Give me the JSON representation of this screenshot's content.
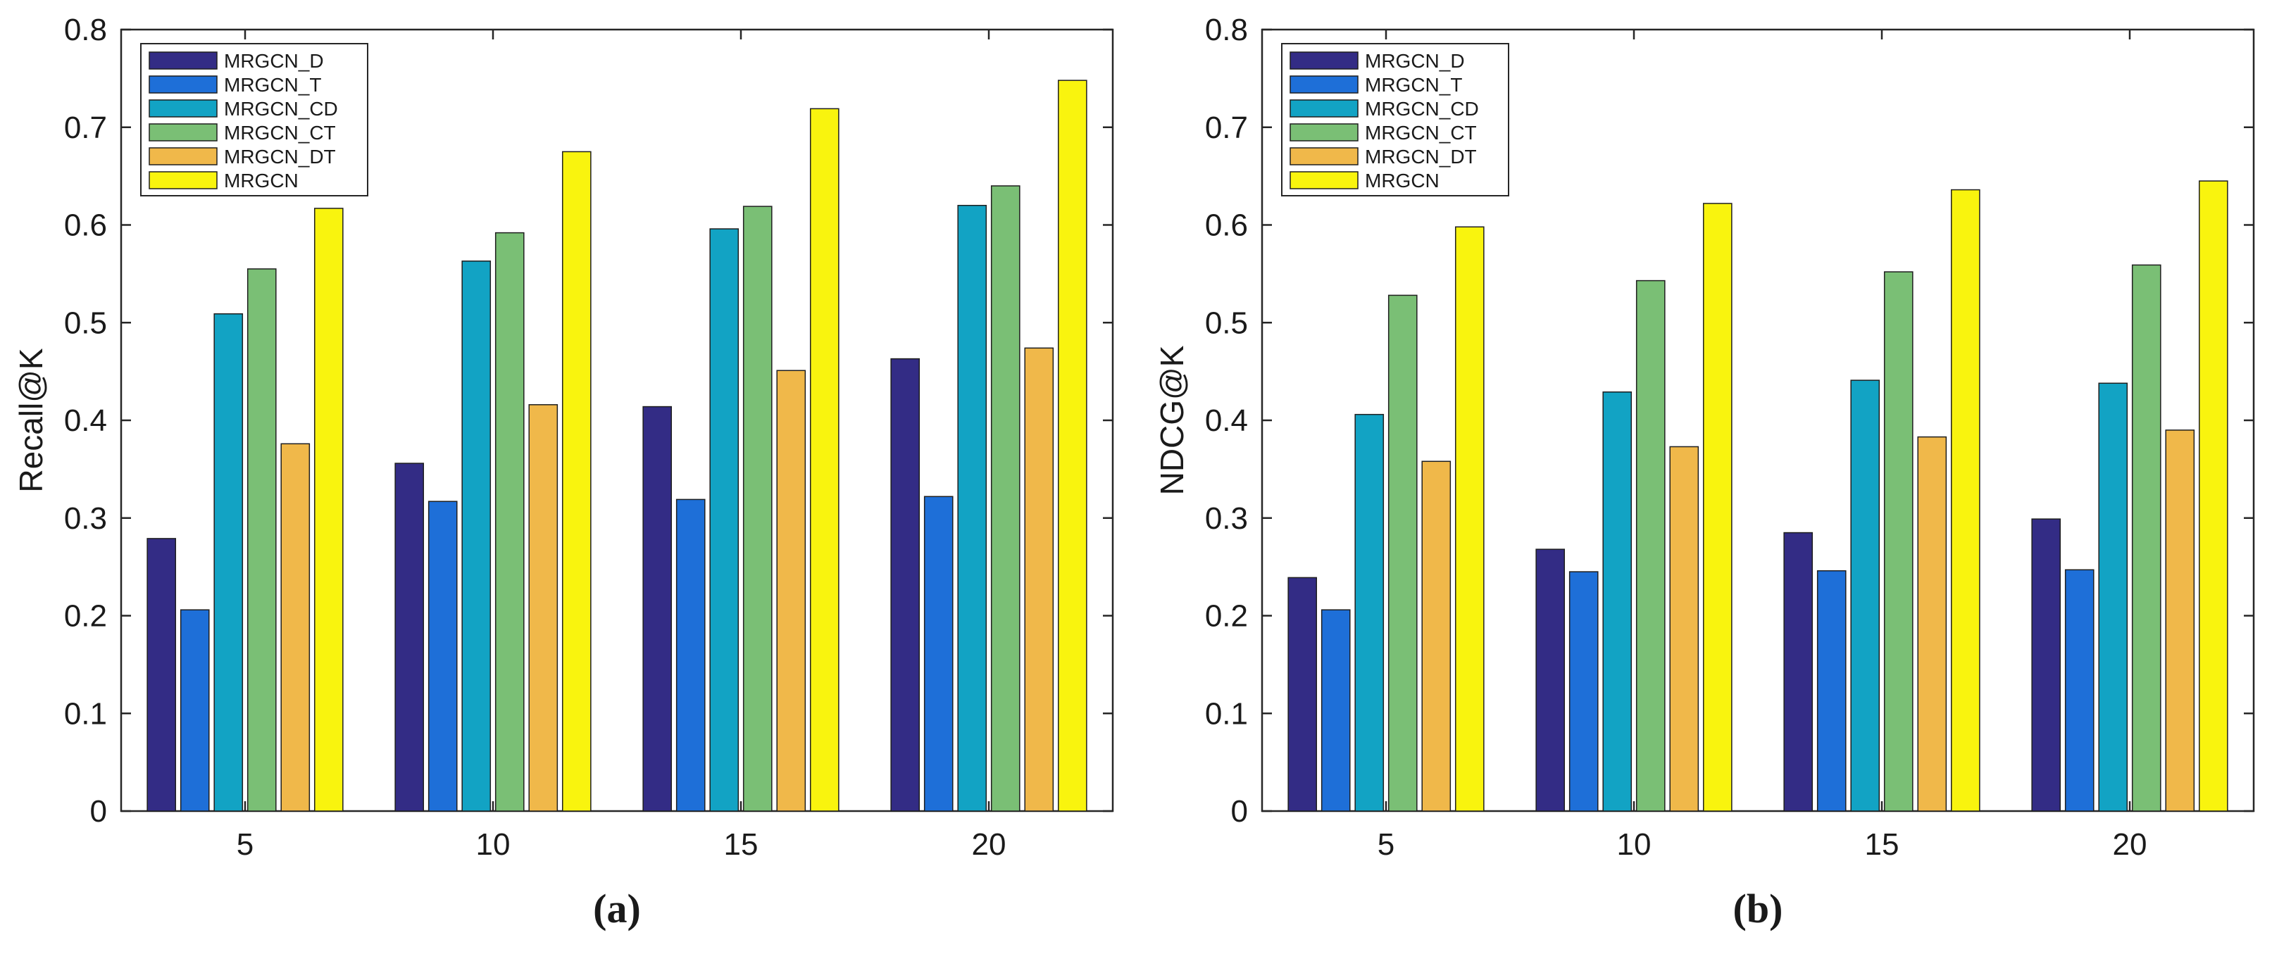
{
  "captions": [
    "(a)",
    "(b)"
  ],
  "chart_data": [
    {
      "type": "bar",
      "categories": [
        "5",
        "10",
        "15",
        "20"
      ],
      "ylabel": "Recall@K",
      "xlabel": "",
      "ylim": [
        0,
        0.8
      ],
      "yticks": [
        "0",
        "0.1",
        "0.2",
        "0.3",
        "0.4",
        "0.5",
        "0.6",
        "0.7",
        "0.8"
      ],
      "legend_position": "top-left",
      "grid": false,
      "series": [
        {
          "name": "MRGCN_D",
          "color": "#332c85",
          "values": [
            0.279,
            0.356,
            0.414,
            0.463
          ]
        },
        {
          "name": "MRGCN_T",
          "color": "#1e6fd8",
          "values": [
            0.206,
            0.317,
            0.319,
            0.322
          ]
        },
        {
          "name": "MRGCN_CD",
          "color": "#12a3c4",
          "values": [
            0.509,
            0.563,
            0.596,
            0.62
          ]
        },
        {
          "name": "MRGCN_CT",
          "color": "#7abf75",
          "values": [
            0.555,
            0.592,
            0.619,
            0.64
          ]
        },
        {
          "name": "MRGCN_DT",
          "color": "#f0b84a",
          "values": [
            0.376,
            0.416,
            0.451,
            0.474
          ]
        },
        {
          "name": "MRGCN",
          "color": "#f9f40e",
          "values": [
            0.617,
            0.675,
            0.719,
            0.748
          ]
        }
      ]
    },
    {
      "type": "bar",
      "categories": [
        "5",
        "10",
        "15",
        "20"
      ],
      "ylabel": "NDCG@K",
      "xlabel": "",
      "ylim": [
        0,
        0.8
      ],
      "yticks": [
        "0",
        "0.1",
        "0.2",
        "0.3",
        "0.4",
        "0.5",
        "0.6",
        "0.7",
        "0.8"
      ],
      "legend_position": "top-left",
      "grid": false,
      "series": [
        {
          "name": "MRGCN_D",
          "color": "#332c85",
          "values": [
            0.239,
            0.268,
            0.285,
            0.299
          ]
        },
        {
          "name": "MRGCN_T",
          "color": "#1e6fd8",
          "values": [
            0.206,
            0.245,
            0.246,
            0.247
          ]
        },
        {
          "name": "MRGCN_CD",
          "color": "#12a3c4",
          "values": [
            0.406,
            0.429,
            0.441,
            0.438
          ]
        },
        {
          "name": "MRGCN_CT",
          "color": "#7abf75",
          "values": [
            0.528,
            0.543,
            0.552,
            0.559
          ]
        },
        {
          "name": "MRGCN_DT",
          "color": "#f0b84a",
          "values": [
            0.358,
            0.373,
            0.383,
            0.39
          ]
        },
        {
          "name": "MRGCN",
          "color": "#f9f40e",
          "values": [
            0.598,
            0.622,
            0.636,
            0.645
          ]
        }
      ]
    }
  ]
}
